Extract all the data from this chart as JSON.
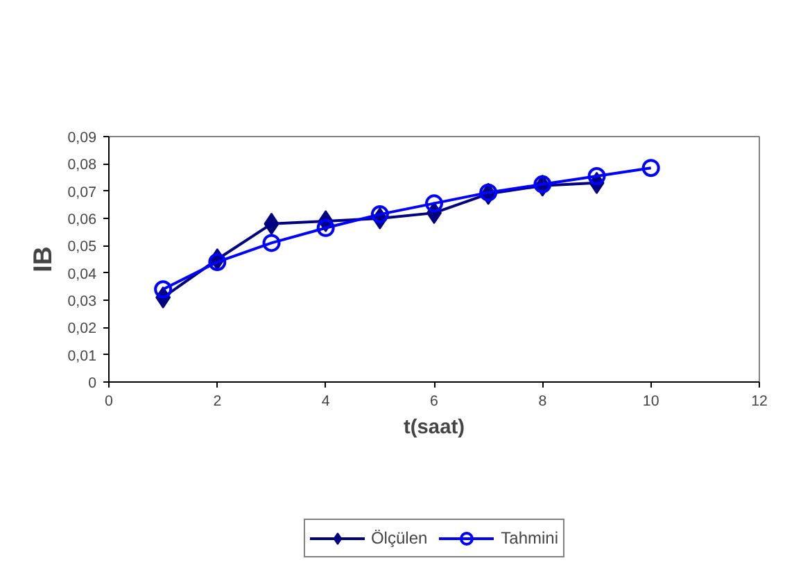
{
  "chart_data": {
    "type": "line",
    "xlabel": "t(saat)",
    "ylabel": "IB",
    "xlim": [
      0,
      12
    ],
    "xticks": [
      0,
      2,
      4,
      6,
      8,
      10,
      12
    ],
    "ylim": [
      0,
      0.09
    ],
    "yticks": [
      {
        "value": 0,
        "label": "0"
      },
      {
        "value": 0.01,
        "label": "0,01"
      },
      {
        "value": 0.02,
        "label": "0,02"
      },
      {
        "value": 0.03,
        "label": "0,03"
      },
      {
        "value": 0.04,
        "label": "0,04"
      },
      {
        "value": 0.05,
        "label": "0,05"
      },
      {
        "value": 0.06,
        "label": "0,06"
      },
      {
        "value": 0.07,
        "label": "0,07"
      },
      {
        "value": 0.08,
        "label": "0,08"
      },
      {
        "value": 0.09,
        "label": "0,09"
      }
    ],
    "grid": false,
    "legend": "bottom",
    "series": [
      {
        "name": "Ölçülen",
        "color": "#000080",
        "marker": "diamond",
        "x": [
          1,
          2,
          3,
          4,
          5,
          6,
          7,
          8,
          9
        ],
        "values": [
          0.031,
          0.045,
          0.058,
          0.059,
          0.06,
          0.062,
          0.069,
          0.072,
          0.073
        ]
      },
      {
        "name": "Tahmini",
        "color": "#0000ff",
        "marker": "circle",
        "x": [
          1,
          2,
          3,
          4,
          5,
          6,
          7,
          8,
          9,
          10
        ],
        "values": [
          0.034,
          0.044,
          0.051,
          0.0565,
          0.0615,
          0.0655,
          0.0695,
          0.0725,
          0.0755,
          0.0785
        ]
      }
    ]
  }
}
